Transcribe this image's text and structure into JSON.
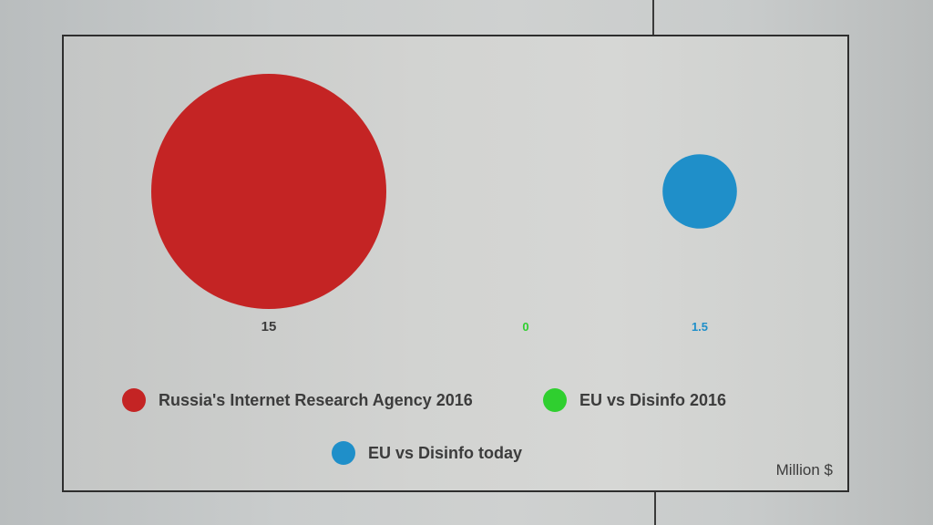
{
  "chart_data": {
    "type": "bubble",
    "title": "",
    "unit_label": "Million $",
    "series": [
      {
        "name": "Russia's Internet Research Agency 2016",
        "value": 15,
        "label": "15",
        "color": "#c42424"
      },
      {
        "name": "EU vs Disinfo 2016",
        "value": 0,
        "label": "0",
        "color": "#2fcf2f"
      },
      {
        "name": "EU vs Disinfo today",
        "value": 1.5,
        "label": "1.5",
        "color": "#1f8fc9"
      }
    ],
    "legend_position": "bottom"
  }
}
